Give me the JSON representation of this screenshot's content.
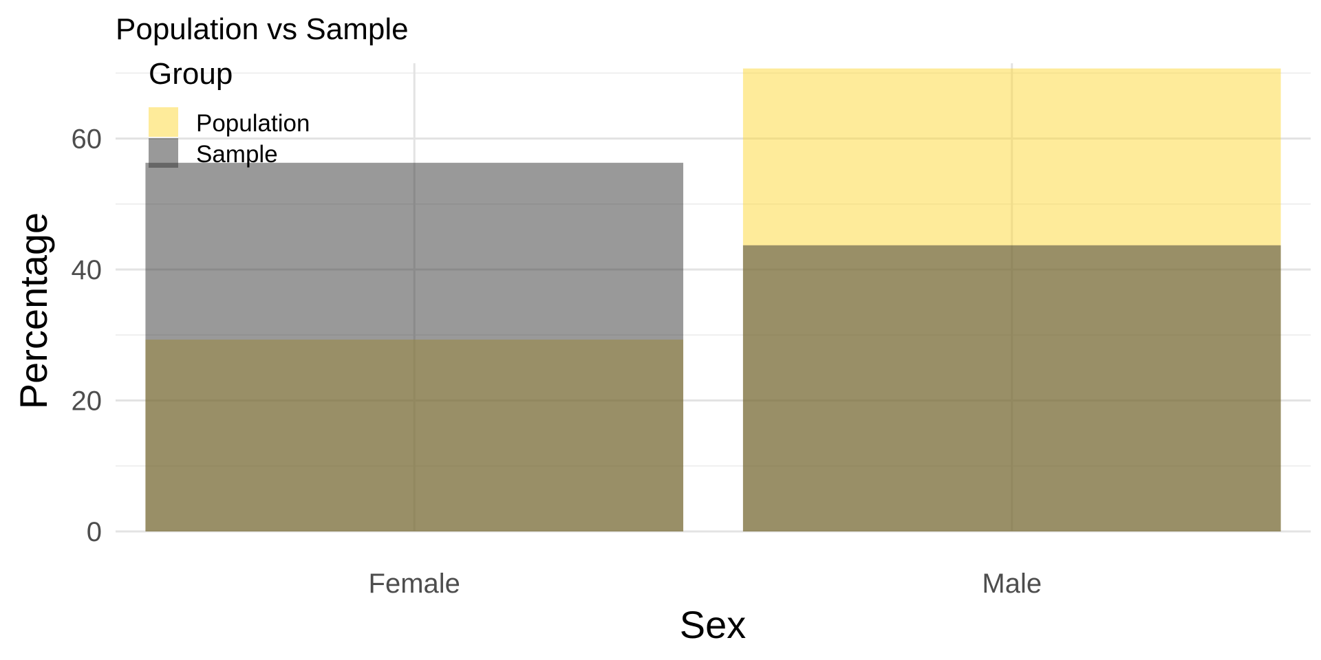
{
  "chart_data": {
    "type": "bar",
    "title": "Population vs Sample",
    "xlabel": "Sex",
    "ylabel": "Percentage",
    "categories": [
      "Female",
      "Male"
    ],
    "series": [
      {
        "name": "Population",
        "values": [
          29.3,
          70.7
        ],
        "color": "#FDD835",
        "opacity": 0.5
      },
      {
        "name": "Sample",
        "values": [
          56.3,
          43.7
        ],
        "color": "#333333",
        "opacity": 0.5
      }
    ],
    "ylim": [
      0,
      71.5
    ],
    "yticks": [
      0,
      20,
      40,
      60
    ],
    "grid": true,
    "legend": {
      "title": "Group",
      "position": "top-left"
    },
    "overlap": "overlaid"
  }
}
